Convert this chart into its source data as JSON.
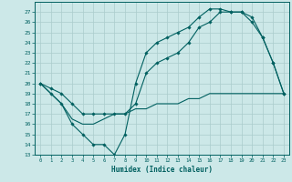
{
  "xlabel": "Humidex (Indice chaleur)",
  "ylabel": "",
  "background_color": "#cce8e8",
  "grid_color": "#aacccc",
  "line_color": "#006060",
  "xlim": [
    -0.5,
    23.5
  ],
  "ylim": [
    13,
    28
  ],
  "xticks": [
    0,
    1,
    2,
    3,
    4,
    5,
    6,
    7,
    8,
    9,
    10,
    11,
    12,
    13,
    14,
    15,
    16,
    17,
    18,
    19,
    20,
    21,
    22,
    23
  ],
  "yticks": [
    13,
    14,
    15,
    16,
    17,
    18,
    19,
    20,
    21,
    22,
    23,
    24,
    25,
    26,
    27
  ],
  "line1_x": [
    0,
    1,
    2,
    3,
    4,
    5,
    6,
    7,
    8,
    9,
    10,
    11,
    12,
    13,
    14,
    15,
    16,
    17,
    18,
    19,
    20,
    21,
    22,
    23
  ],
  "line1_y": [
    20,
    19,
    18,
    16,
    15,
    14,
    14,
    13,
    15,
    20,
    23,
    24,
    24.5,
    25,
    25.5,
    26.5,
    27.3,
    27.3,
    27,
    27,
    26.5,
    24.5,
    22,
    19
  ],
  "line2_x": [
    0,
    1,
    2,
    3,
    4,
    5,
    6,
    7,
    8,
    9,
    10,
    11,
    12,
    13,
    14,
    15,
    16,
    17,
    18,
    19,
    20,
    21,
    22,
    23
  ],
  "line2_y": [
    20,
    19,
    18,
    16.5,
    16,
    16,
    16.5,
    17,
    17,
    17.5,
    17.5,
    18,
    18,
    18,
    18.5,
    18.5,
    19,
    19,
    19,
    19,
    19,
    19,
    19,
    19
  ],
  "line3_x": [
    0,
    1,
    2,
    3,
    4,
    5,
    6,
    7,
    8,
    9,
    10,
    11,
    12,
    13,
    14,
    15,
    16,
    17,
    18,
    19,
    20,
    21,
    22,
    23
  ],
  "line3_y": [
    20,
    19.5,
    19,
    18,
    17,
    17,
    17,
    17,
    17,
    18,
    21,
    22,
    22.5,
    23,
    24,
    25.5,
    26,
    27,
    27,
    27,
    26,
    24.5,
    22,
    19
  ]
}
